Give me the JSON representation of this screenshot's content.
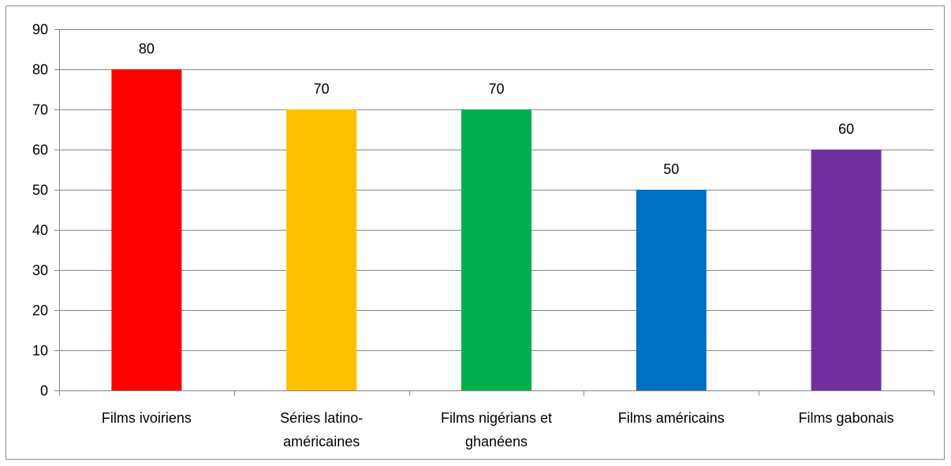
{
  "chart_data": {
    "type": "bar",
    "categories": [
      [
        "Films ivoiriens"
      ],
      [
        "Séries latino-",
        "américaines"
      ],
      [
        "Films nigérians et",
        "ghanéens"
      ],
      [
        "Films américains"
      ],
      [
        "Films gabonais"
      ]
    ],
    "category_labels": [
      "Films ivoiriens",
      "Séries latino-américaines",
      "Films nigérians et ghanéens",
      "Films américains",
      "Films gabonais"
    ],
    "values": [
      80,
      70,
      70,
      50,
      60
    ],
    "data_labels": [
      "80",
      "70",
      "70",
      "50",
      "60"
    ],
    "colors": [
      "#ff0000",
      "#ffc000",
      "#00b050",
      "#0070c0",
      "#7030a0"
    ],
    "ylim": [
      0,
      90
    ],
    "yticks": [
      0,
      10,
      20,
      30,
      40,
      50,
      60,
      70,
      80,
      90
    ],
    "grid": true,
    "legend": "none",
    "title": "",
    "xlabel": "",
    "ylabel": ""
  }
}
